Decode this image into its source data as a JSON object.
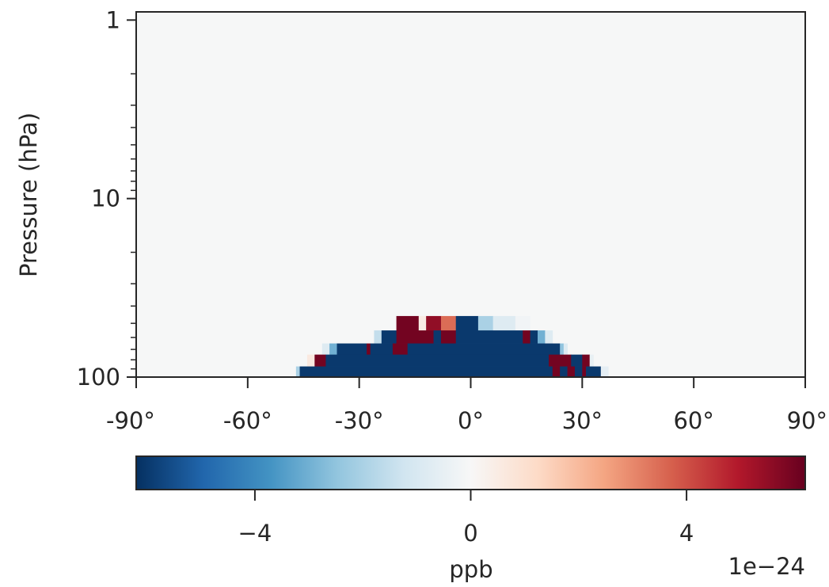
{
  "chart_data": {
    "type": "heatmap",
    "title": "",
    "xlabel": "",
    "ylabel": "Pressure (hPa)",
    "x_ticks": [
      -90,
      -60,
      -30,
      0,
      30,
      60,
      90
    ],
    "x_tick_labels": [
      "-90°",
      "-60°",
      "-30°",
      "0°",
      "30°",
      "60°",
      "90°"
    ],
    "y_scale": "log",
    "y_inverted": true,
    "y_ticks": [
      1,
      10,
      100
    ],
    "y_tick_labels": [
      "1",
      "10",
      "100"
    ],
    "xlim": [
      -90,
      90
    ],
    "ylim": [
      100,
      0.9
    ],
    "background_value": 0,
    "nonzero_cells": [
      {
        "lat_min": -20,
        "lat_max": -14,
        "p": 50,
        "value": 6.0
      },
      {
        "lat_min": -14,
        "lat_max": -12,
        "p": 50,
        "value": 0.5
      },
      {
        "lat_min": -12,
        "lat_max": -8,
        "p": 50,
        "value": 5.5
      },
      {
        "lat_min": -8,
        "lat_max": -4,
        "p": 50,
        "value": 3.5
      },
      {
        "lat_min": -4,
        "lat_max": 2,
        "p": 50,
        "value": -6.0
      },
      {
        "lat_min": 2,
        "lat_max": 6,
        "p": 50,
        "value": -2.0
      },
      {
        "lat_min": 6,
        "lat_max": 12,
        "p": 50,
        "value": -0.8
      },
      {
        "lat_min": 12,
        "lat_max": 16,
        "p": 50,
        "value": -0.2
      },
      {
        "lat_min": -26,
        "lat_max": -24,
        "p": 60,
        "value": -1.5
      },
      {
        "lat_min": -24,
        "lat_max": -20,
        "p": 60,
        "value": -6.0
      },
      {
        "lat_min": -20,
        "lat_max": -10,
        "p": 60,
        "value": 6.0
      },
      {
        "lat_min": -10,
        "lat_max": -8,
        "p": 60,
        "value": -6.0
      },
      {
        "lat_min": -8,
        "lat_max": -4,
        "p": 60,
        "value": 6.0
      },
      {
        "lat_min": -4,
        "lat_max": 14,
        "p": 60,
        "value": -6.0
      },
      {
        "lat_min": 14,
        "lat_max": 16,
        "p": 60,
        "value": 6.0
      },
      {
        "lat_min": 16,
        "lat_max": 18,
        "p": 60,
        "value": -6.0
      },
      {
        "lat_min": 18,
        "lat_max": 20,
        "p": 60,
        "value": -3.0
      },
      {
        "lat_min": 20,
        "lat_max": 22,
        "p": 60,
        "value": -0.8
      },
      {
        "lat_min": -40,
        "lat_max": -38,
        "p": 70,
        "value": -0.8
      },
      {
        "lat_min": -38,
        "lat_max": -36,
        "p": 70,
        "value": -3.0
      },
      {
        "lat_min": -36,
        "lat_max": -28,
        "p": 70,
        "value": -6.0
      },
      {
        "lat_min": -28,
        "lat_max": -27,
        "p": 70,
        "value": 6.0
      },
      {
        "lat_min": -27,
        "lat_max": -21,
        "p": 70,
        "value": -6.0
      },
      {
        "lat_min": -21,
        "lat_max": -17,
        "p": 70,
        "value": 6.0
      },
      {
        "lat_min": -17,
        "lat_max": 24,
        "p": 70,
        "value": -6.0
      },
      {
        "lat_min": 24,
        "lat_max": 25,
        "p": 70,
        "value": -2.5
      },
      {
        "lat_min": 25,
        "lat_max": 26,
        "p": 70,
        "value": -0.8
      },
      {
        "lat_min": -44,
        "lat_max": -42,
        "p": 80,
        "value": 0.6
      },
      {
        "lat_min": -42,
        "lat_max": -39,
        "p": 80,
        "value": 6.0
      },
      {
        "lat_min": -39,
        "lat_max": 21,
        "p": 80,
        "value": -6.0
      },
      {
        "lat_min": 21,
        "lat_max": 27,
        "p": 80,
        "value": 6.0
      },
      {
        "lat_min": 27,
        "lat_max": 30,
        "p": 80,
        "value": -6.0
      },
      {
        "lat_min": 30,
        "lat_max": 32,
        "p": 80,
        "value": 6.0
      },
      {
        "lat_min": 32,
        "lat_max": 33,
        "p": 80,
        "value": -0.5
      },
      {
        "lat_min": -47,
        "lat_max": -46,
        "p": 95,
        "value": -2.0
      },
      {
        "lat_min": -46,
        "lat_max": 22,
        "p": 95,
        "value": -6.0
      },
      {
        "lat_min": 22,
        "lat_max": 24,
        "p": 95,
        "value": 6.0
      },
      {
        "lat_min": 24,
        "lat_max": 26,
        "p": 95,
        "value": -6.0
      },
      {
        "lat_min": 26,
        "lat_max": 28,
        "p": 95,
        "value": 6.0
      },
      {
        "lat_min": 28,
        "lat_max": 30,
        "p": 95,
        "value": -6.0
      },
      {
        "lat_min": 30,
        "lat_max": 31,
        "p": 95,
        "value": 6.0
      },
      {
        "lat_min": 31,
        "lat_max": 35,
        "p": 95,
        "value": -6.0
      },
      {
        "lat_min": 35,
        "lat_max": 37,
        "p": 95,
        "value": -0.6
      }
    ],
    "colorbar": {
      "cmap": "RdBu_r",
      "vmin": -6.2,
      "vmax": 6.2,
      "ticks": [
        -4,
        0,
        4
      ],
      "tick_labels": [
        "−4",
        "0",
        "4"
      ],
      "label": "ppb",
      "offset_label": "1e−24",
      "colors": [
        "#053061",
        "#2166ac",
        "#4393c3",
        "#92c5de",
        "#d1e5f0",
        "#f7f7f7",
        "#fddbc7",
        "#f4a582",
        "#d6604d",
        "#b2182b",
        "#67001f"
      ]
    }
  }
}
